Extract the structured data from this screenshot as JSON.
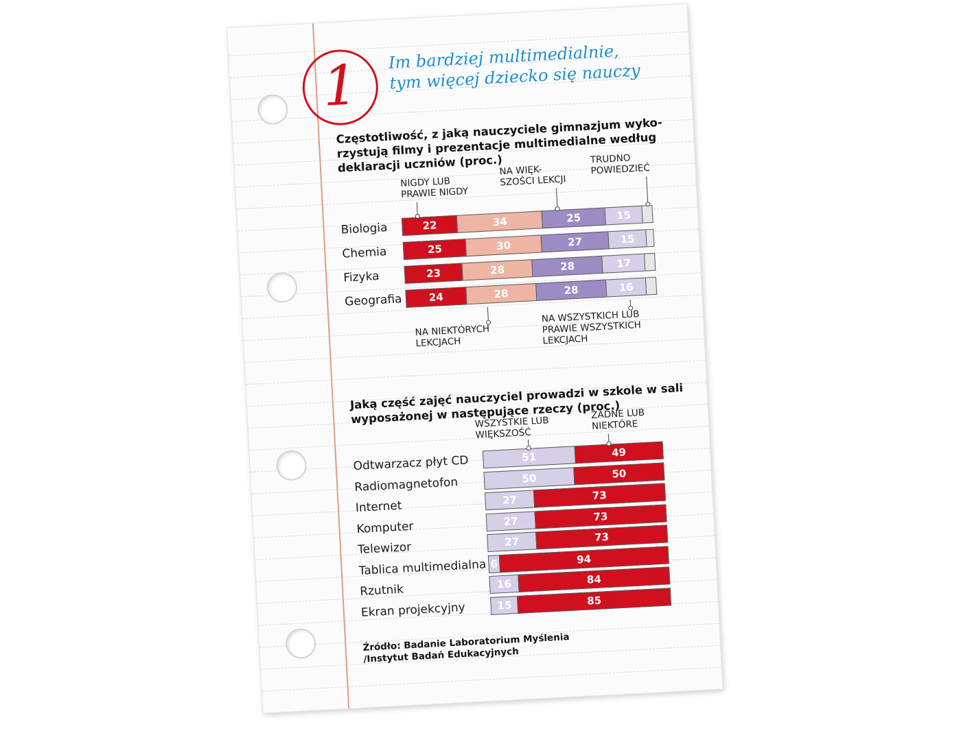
{
  "headline": {
    "number": "1",
    "lines": [
      "Im bardziej multimedialnie,",
      "tym więcej dziecko się nauczy"
    ]
  },
  "colors": {
    "red": "#d0101e",
    "salmon": "#efb5a4",
    "purple": "#9b8cc4",
    "lavender": "#d6cfe8",
    "gray": "#e6e6e6",
    "headline": "#1d8fcf"
  },
  "chart_data": [
    {
      "type": "bar",
      "orientation": "horizontal",
      "stacked": true,
      "title_lines": [
        "Częstotliwość, z jaką nauczyciele gimnazjum wyko-",
        "rzystują filmy i prezentacje multimedialne według",
        "deklaracji uczniów (proc.)"
      ],
      "categories": [
        "Biologia",
        "Chemia",
        "Fizyka",
        "Geografia"
      ],
      "series": [
        {
          "name": "NIGDY LUB PRAWIE NIGDY",
          "label_lines": [
            "NIGDY LUB",
            "PRAWIE NIGDY"
          ],
          "color": "#d0101e",
          "values": [
            22,
            25,
            23,
            24
          ]
        },
        {
          "name": "NA NIEKTÓRYCH LEKCJACH",
          "label_lines": [
            "NA NIEKTÓRYCH",
            "LEKCJACH"
          ],
          "color": "#efb5a4",
          "values": [
            34,
            30,
            28,
            28
          ]
        },
        {
          "name": "NA WIĘKSZOŚCI LEKCJI",
          "label_lines": [
            "NA WIĘK-",
            "SZOŚCI LEKCJI"
          ],
          "color": "#9b8cc4",
          "values": [
            25,
            27,
            28,
            28
          ]
        },
        {
          "name": "NA WSZYSTKICH LUB PRAWIE WSZYSTKICH LEKCJACH",
          "label_lines": [
            "NA WSZYSTKICH LUB",
            "PRAWIE WSZYSTKICH",
            "LEKCJACH"
          ],
          "color": "#d6cfe8",
          "values": [
            15,
            15,
            17,
            16
          ]
        },
        {
          "name": "TRUDNO POWIEDZIEĆ",
          "label_lines": [
            "TRUDNO",
            "POWIEDZIEĆ"
          ],
          "color": "#e6e6e6",
          "values": [
            4,
            3,
            4,
            4
          ]
        }
      ],
      "xlim": [
        0,
        100
      ]
    },
    {
      "type": "bar",
      "orientation": "horizontal",
      "stacked": true,
      "title_lines": [
        "Jaką część zajęć nauczyciel prowadzi w szkole w sali",
        "wyposażonej w następujące rzeczy (proc.)"
      ],
      "categories": [
        "Odtwarzacz płyt CD",
        "Radiomagnetofon",
        "Internet",
        "Komputer",
        "Telewizor",
        "Tablica multimedialna",
        "Rzutnik",
        "Ekran projekcyjny"
      ],
      "series": [
        {
          "name": "WSZYSTKIE LUB WIĘKSZOŚĆ",
          "label_lines": [
            "WSZYSTKIE LUB",
            "WIĘKSZOŚĆ"
          ],
          "color": "#d6cfe8",
          "values": [
            51,
            50,
            27,
            27,
            27,
            6,
            16,
            15
          ]
        },
        {
          "name": "ŻADNE LUB NIEKTÓRE",
          "label_lines": [
            "ŻADNE LUB",
            "NIEKTÓRE"
          ],
          "color": "#d0101e",
          "values": [
            49,
            50,
            73,
            73,
            73,
            94,
            84,
            85
          ]
        }
      ],
      "xlim": [
        0,
        100
      ]
    }
  ],
  "source_lines": [
    "Źródło: Badanie Laboratorium Myślenia",
    "/Instytut Badań Edukacyjnych"
  ]
}
